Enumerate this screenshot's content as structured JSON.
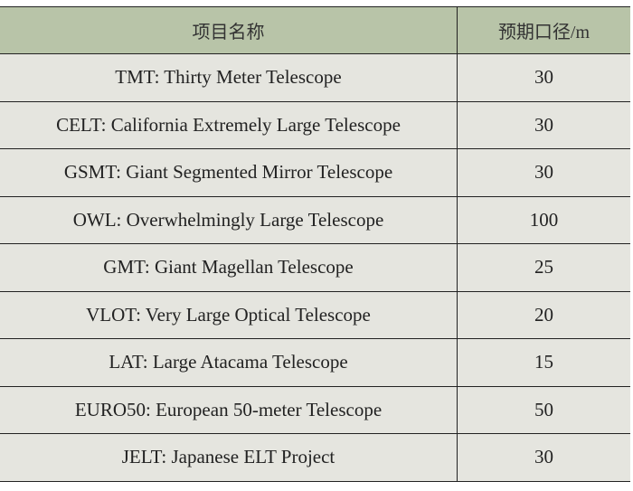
{
  "table": {
    "headers": [
      "项目名称",
      "预期口径/m"
    ],
    "rows": [
      [
        "TMT: Thirty Meter Telescope",
        "30"
      ],
      [
        "CELT: California Extremely Large Telescope",
        "30"
      ],
      [
        "GSMT: Giant Segmented Mirror Telescope",
        "30"
      ],
      [
        "OWL: Overwhelmingly Large Telescope",
        "100"
      ],
      [
        "GMT: Giant Magellan Telescope",
        "25"
      ],
      [
        "VLOT: Very Large Optical Telescope",
        "20"
      ],
      [
        "LAT: Large Atacama Telescope",
        "15"
      ],
      [
        "EURO50: European 50-meter Telescope",
        "50"
      ],
      [
        "JELT: Japanese ELT Project",
        "30"
      ]
    ]
  },
  "colors": {
    "header_bg": "#b8c4a8",
    "row_bg": "#e5e5df",
    "border": "#222222"
  }
}
